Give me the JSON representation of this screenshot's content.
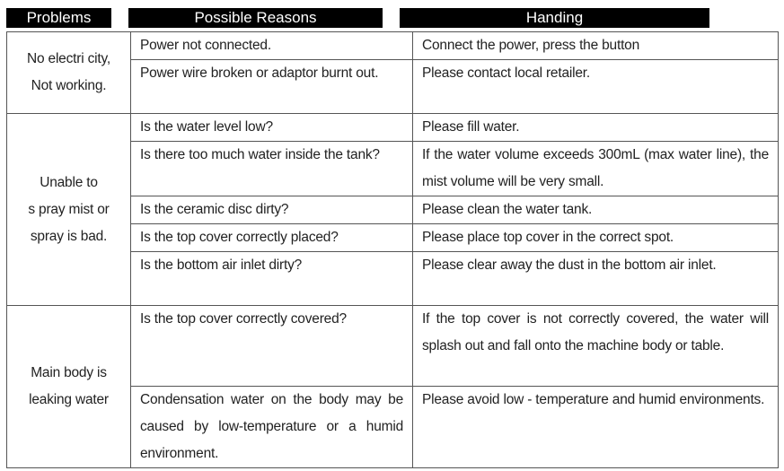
{
  "headers": {
    "problems": "Problems",
    "reasons": "Possible Reasons",
    "handling": "Handing"
  },
  "groups": [
    {
      "problem": [
        "No electri city,",
        "Not working."
      ],
      "rows": [
        {
          "reason": "Power not connected.",
          "handling": "Connect the power, press the button"
        },
        {
          "reason": "Power wire broken or adaptor burnt out.",
          "handling": "Please contact local retailer."
        }
      ]
    },
    {
      "problem": [
        "Unable to",
        "s pray  mist or",
        "spray  is bad."
      ],
      "rows": [
        {
          "reason": "Is the water level low?",
          "handling": "Please fill water."
        },
        {
          "reason": "Is there too much water inside the tank?",
          "handling": "If the water volume exceeds 300mL (max water line), the mist volume will be very small."
        },
        {
          "reason": "Is the ceramic disc dirty?",
          "handling": "Please clean the water tank."
        },
        {
          "reason": "Is the top cover correctly placed?",
          "handling": "Please place top cover in the correct spot."
        },
        {
          "reason": "Is the bottom air inlet dirty?",
          "handling": "Please clear away the dust in the bottom air inlet."
        }
      ]
    },
    {
      "problem": [
        "Main body is",
        "leaking water"
      ],
      "rows": [
        {
          "reason": "Is the top cover correctly covered?",
          "handling": "If the top cover is not correctly covered, the water will splash out and fall onto the machine body or table."
        },
        {
          "reason": "Condensation water on the body may be caused by low-temperature or a humid environment.",
          "handling": "Please avoid low - temperature and humid environments."
        }
      ]
    }
  ]
}
